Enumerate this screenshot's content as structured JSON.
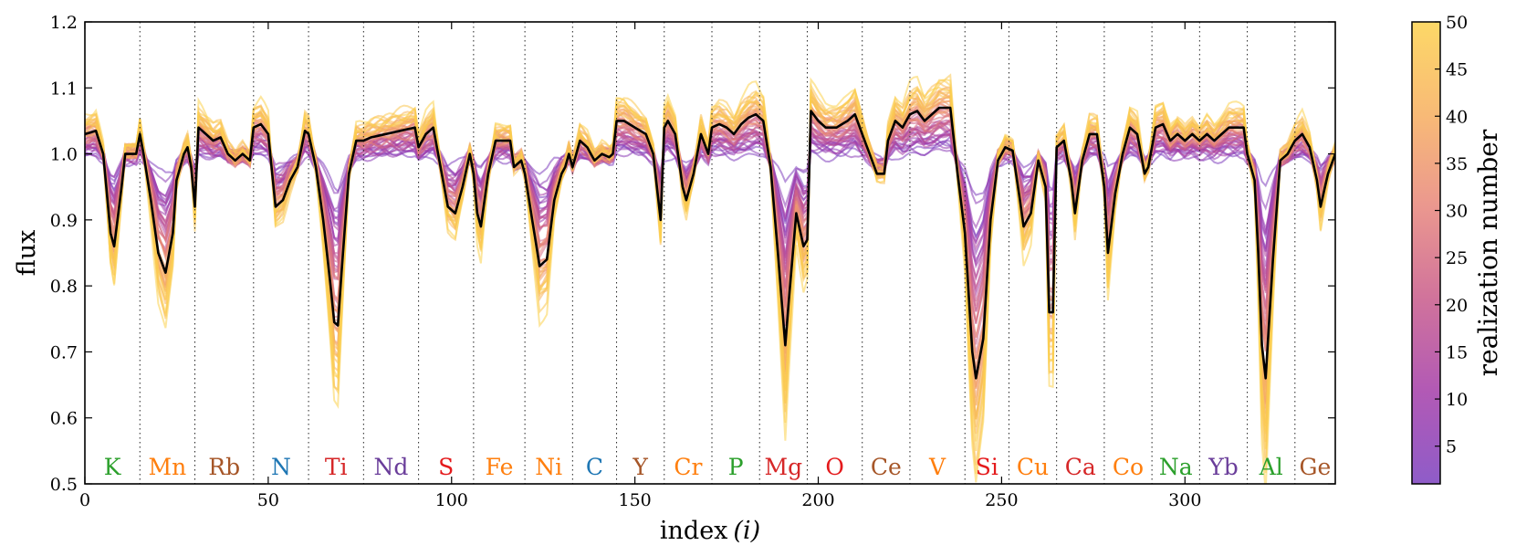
{
  "chart_data": {
    "type": "line",
    "title": "",
    "xlabel": "index",
    "xlabel_var": "(i)",
    "ylabel": "flux",
    "xlim": [
      0,
      341
    ],
    "ylim": [
      0.5,
      1.2
    ],
    "xticks": [
      0,
      50,
      100,
      150,
      200,
      250,
      300
    ],
    "xtick_labels": [
      "0",
      "50",
      "100",
      "150",
      "200",
      "250",
      "300"
    ],
    "yticks": [
      0.5,
      0.6,
      0.7,
      0.8,
      0.9,
      1.0,
      1.1,
      1.2
    ],
    "ytick_labels": [
      "0.5",
      "0.6",
      "0.7",
      "0.8",
      "0.9",
      "1.0",
      "1.1",
      "1.2"
    ],
    "grid": false,
    "segment_boundaries": [
      15,
      30,
      46,
      61,
      76,
      91,
      106,
      120,
      133,
      145,
      158,
      171,
      184,
      197,
      212,
      225,
      240,
      252,
      265,
      278,
      291,
      304,
      317,
      330
    ],
    "elements": [
      {
        "name": "K",
        "x": 7.5,
        "color": "#2ca02c"
      },
      {
        "name": "Mn",
        "x": 22.5,
        "color": "#ff7f0e"
      },
      {
        "name": "Rb",
        "x": 38,
        "color": "#a65628"
      },
      {
        "name": "N",
        "x": 53.5,
        "color": "#1f77b4"
      },
      {
        "name": "Ti",
        "x": 68.5,
        "color": "#d62728"
      },
      {
        "name": "Nd",
        "x": 83.5,
        "color": "#6a3d9a"
      },
      {
        "name": "S",
        "x": 98.5,
        "color": "#e41a1c"
      },
      {
        "name": "Fe",
        "x": 113,
        "color": "#ff7f0e"
      },
      {
        "name": "Ni",
        "x": 126.5,
        "color": "#ff7f0e"
      },
      {
        "name": "C",
        "x": 139,
        "color": "#1f77b4"
      },
      {
        "name": "Y",
        "x": 151.5,
        "color": "#a65628"
      },
      {
        "name": "Cr",
        "x": 164.5,
        "color": "#ff7f0e"
      },
      {
        "name": "P",
        "x": 177.5,
        "color": "#2ca02c"
      },
      {
        "name": "Mg",
        "x": 190.5,
        "color": "#d62728"
      },
      {
        "name": "O",
        "x": 204.5,
        "color": "#e41a1c"
      },
      {
        "name": "Ce",
        "x": 218.5,
        "color": "#a65628"
      },
      {
        "name": "V",
        "x": 232.5,
        "color": "#ff7f0e"
      },
      {
        "name": "Si",
        "x": 246,
        "color": "#e41a1c"
      },
      {
        "name": "Cu",
        "x": 258.5,
        "color": "#ff7f0e"
      },
      {
        "name": "Ca",
        "x": 271.5,
        "color": "#d62728"
      },
      {
        "name": "Co",
        "x": 284.5,
        "color": "#ff7f0e"
      },
      {
        "name": "Na",
        "x": 297.5,
        "color": "#2ca02c"
      },
      {
        "name": "Yb",
        "x": 310.5,
        "color": "#6a3d9a"
      },
      {
        "name": "Al",
        "x": 323.5,
        "color": "#2ca02c"
      },
      {
        "name": "Ge",
        "x": 335.5,
        "color": "#a65628"
      }
    ],
    "mean_series": {
      "name": "mean",
      "color": "#000000",
      "points": [
        [
          0,
          1.03
        ],
        [
          3,
          1.035
        ],
        [
          5,
          1.0
        ],
        [
          7,
          0.88
        ],
        [
          8,
          0.86
        ],
        [
          10,
          0.95
        ],
        [
          11,
          1.0
        ],
        [
          13,
          1.0
        ],
        [
          14,
          1.0
        ],
        [
          15,
          1.03
        ],
        [
          16,
          1.0
        ],
        [
          18,
          0.93
        ],
        [
          20,
          0.85
        ],
        [
          22,
          0.82
        ],
        [
          24,
          0.88
        ],
        [
          25,
          0.96
        ],
        [
          27,
          1.0
        ],
        [
          28,
          1.01
        ],
        [
          29,
          0.98
        ],
        [
          30,
          0.92
        ],
        [
          31,
          1.04
        ],
        [
          33,
          1.03
        ],
        [
          35,
          1.02
        ],
        [
          37,
          1.025
        ],
        [
          39,
          1.0
        ],
        [
          41,
          0.99
        ],
        [
          43,
          1.0
        ],
        [
          45,
          0.99
        ],
        [
          46,
          1.04
        ],
        [
          48,
          1.045
        ],
        [
          50,
          1.03
        ],
        [
          52,
          0.92
        ],
        [
          54,
          0.93
        ],
        [
          56,
          0.96
        ],
        [
          58,
          0.98
        ],
        [
          60,
          1.035
        ],
        [
          61,
          1.03
        ],
        [
          63,
          0.98
        ],
        [
          65,
          0.9
        ],
        [
          67,
          0.8
        ],
        [
          68,
          0.745
        ],
        [
          69,
          0.74
        ],
        [
          70,
          0.82
        ],
        [
          72,
          0.97
        ],
        [
          74,
          1.02
        ],
        [
          76,
          1.02
        ],
        [
          78,
          1.025
        ],
        [
          82,
          1.03
        ],
        [
          86,
          1.035
        ],
        [
          90,
          1.04
        ],
        [
          91,
          1.01
        ],
        [
          93,
          1.03
        ],
        [
          95,
          1.04
        ],
        [
          97,
          0.98
        ],
        [
          99,
          0.92
        ],
        [
          101,
          0.91
        ],
        [
          103,
          0.95
        ],
        [
          105,
          1.0
        ],
        [
          106,
          0.97
        ],
        [
          107,
          0.91
        ],
        [
          108,
          0.89
        ],
        [
          110,
          0.97
        ],
        [
          112,
          1.02
        ],
        [
          114,
          1.02
        ],
        [
          116,
          1.02
        ],
        [
          117,
          0.98
        ],
        [
          119,
          0.99
        ],
        [
          120,
          0.97
        ],
        [
          122,
          0.9
        ],
        [
          124,
          0.83
        ],
        [
          126,
          0.84
        ],
        [
          128,
          0.93
        ],
        [
          130,
          0.97
        ],
        [
          131,
          0.98
        ],
        [
          132,
          1.0
        ],
        [
          133,
          0.98
        ],
        [
          135,
          1.02
        ],
        [
          137,
          1.01
        ],
        [
          139,
          0.99
        ],
        [
          141,
          1.0
        ],
        [
          143,
          0.995
        ],
        [
          144,
          1.0
        ],
        [
          145,
          1.05
        ],
        [
          147,
          1.05
        ],
        [
          150,
          1.04
        ],
        [
          153,
          1.03
        ],
        [
          155,
          1.0
        ],
        [
          157,
          0.9
        ],
        [
          158,
          1.04
        ],
        [
          159,
          1.05
        ],
        [
          161,
          1.03
        ],
        [
          163,
          0.95
        ],
        [
          164,
          0.93
        ],
        [
          166,
          0.97
        ],
        [
          168,
          1.03
        ],
        [
          170,
          1.0
        ],
        [
          171,
          1.04
        ],
        [
          173,
          1.045
        ],
        [
          175,
          1.04
        ],
        [
          177,
          1.03
        ],
        [
          179,
          1.045
        ],
        [
          181,
          1.055
        ],
        [
          183,
          1.06
        ],
        [
          185,
          1.05
        ],
        [
          187,
          0.98
        ],
        [
          189,
          0.85
        ],
        [
          191,
          0.71
        ],
        [
          192,
          0.78
        ],
        [
          194,
          0.91
        ],
        [
          196,
          0.86
        ],
        [
          197,
          0.87
        ],
        [
          198,
          1.065
        ],
        [
          200,
          1.05
        ],
        [
          202,
          1.04
        ],
        [
          205,
          1.04
        ],
        [
          208,
          1.05
        ],
        [
          210,
          1.06
        ],
        [
          212,
          1.03
        ],
        [
          214,
          1.0
        ],
        [
          216,
          0.97
        ],
        [
          218,
          0.97
        ],
        [
          219,
          1.02
        ],
        [
          221,
          1.05
        ],
        [
          223,
          1.04
        ],
        [
          225,
          1.06
        ],
        [
          227,
          1.065
        ],
        [
          229,
          1.05
        ],
        [
          231,
          1.06
        ],
        [
          233,
          1.07
        ],
        [
          236,
          1.07
        ],
        [
          238,
          0.97
        ],
        [
          240,
          0.88
        ],
        [
          242,
          0.7
        ],
        [
          243,
          0.66
        ],
        [
          245,
          0.72
        ],
        [
          247,
          0.9
        ],
        [
          249,
          0.99
        ],
        [
          251,
          1.01
        ],
        [
          253,
          1.005
        ],
        [
          255,
          0.93
        ],
        [
          256,
          0.89
        ],
        [
          258,
          0.91
        ],
        [
          260,
          0.99
        ],
        [
          262,
          0.95
        ],
        [
          263,
          0.76
        ],
        [
          264,
          0.76
        ],
        [
          265,
          1.01
        ],
        [
          267,
          1.02
        ],
        [
          269,
          0.96
        ],
        [
          270,
          0.91
        ],
        [
          272,
          0.99
        ],
        [
          274,
          1.03
        ],
        [
          276,
          1.03
        ],
        [
          278,
          0.95
        ],
        [
          279,
          0.85
        ],
        [
          281,
          0.94
        ],
        [
          283,
          1.0
        ],
        [
          285,
          1.04
        ],
        [
          287,
          1.03
        ],
        [
          289,
          0.97
        ],
        [
          290,
          0.98
        ],
        [
          292,
          1.04
        ],
        [
          294,
          1.045
        ],
        [
          296,
          1.02
        ],
        [
          298,
          1.03
        ],
        [
          300,
          1.02
        ],
        [
          302,
          1.03
        ],
        [
          304,
          1.02
        ],
        [
          306,
          1.03
        ],
        [
          308,
          1.02
        ],
        [
          310,
          1.03
        ],
        [
          312,
          1.04
        ],
        [
          314,
          1.04
        ],
        [
          316,
          1.04
        ],
        [
          317,
          1.0
        ],
        [
          319,
          0.96
        ],
        [
          320,
          0.85
        ],
        [
          321,
          0.71
        ],
        [
          322,
          0.66
        ],
        [
          324,
          0.84
        ],
        [
          326,
          0.99
        ],
        [
          328,
          1.0
        ],
        [
          330,
          1.02
        ],
        [
          332,
          1.03
        ],
        [
          334,
          1.01
        ],
        [
          336,
          0.96
        ],
        [
          337,
          0.92
        ],
        [
          339,
          0.97
        ],
        [
          341,
          1.0
        ]
      ]
    },
    "realizations": {
      "count": 50,
      "description": "50 realization curves colored by realization number; deviation from mean grows with realization number",
      "deviation_scale_min": 0.25,
      "deviation_scale_max": 1.4
    },
    "colorbar": {
      "label": "realization number",
      "range": [
        1,
        50
      ],
      "ticks": [
        5,
        10,
        15,
        20,
        25,
        30,
        35,
        40,
        45,
        50
      ],
      "tick_labels": [
        "5",
        "10",
        "15",
        "20",
        "25",
        "30",
        "35",
        "40",
        "45",
        "50"
      ],
      "colors": [
        "#7b3fbf",
        "#a43ca8",
        "#c85a8a",
        "#e7857b",
        "#f7ae5e",
        "#fcd14c"
      ]
    }
  }
}
